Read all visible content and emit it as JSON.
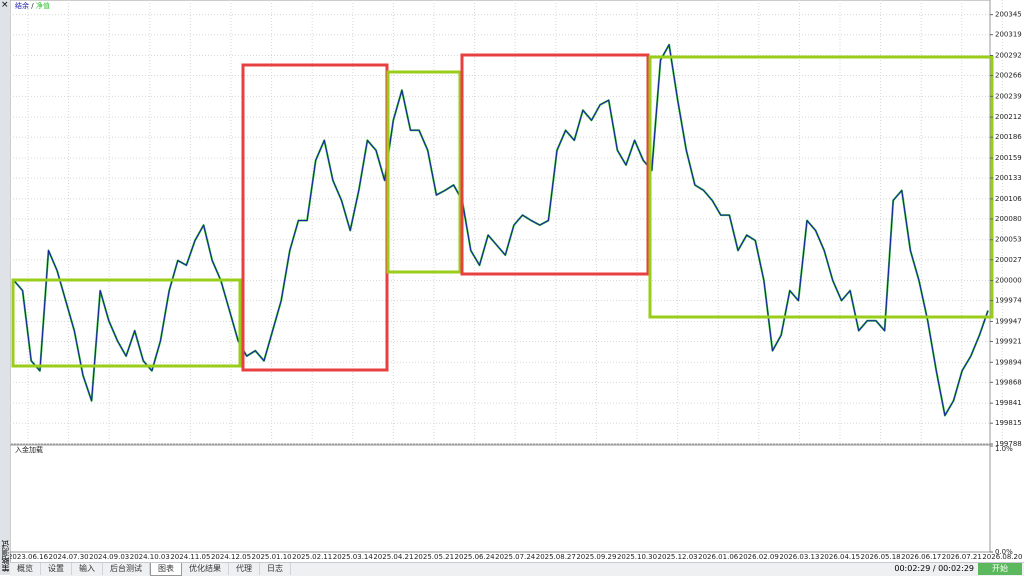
{
  "sidebar": {
    "title": "策略测试",
    "close": "×"
  },
  "chart_data": {
    "type": "line",
    "legend_separator": "/",
    "series": [
      {
        "name": "结余",
        "color": "#1c1ca8",
        "values": [
          200000,
          199987,
          199896,
          199883,
          200039,
          200013,
          199974,
          199935,
          199877,
          199844,
          199987,
          199948,
          199922,
          199902,
          199935,
          199896,
          199883,
          199922,
          199987,
          200026,
          200020,
          200052,
          200072,
          200026,
          200000,
          199961,
          199922,
          199902,
          199909,
          199896,
          199935,
          199974,
          200039,
          200078,
          200078,
          200156,
          200182,
          200130,
          200104,
          200065,
          200117,
          200182,
          200169,
          200130,
          200208,
          200247,
          200195,
          200195,
          200169,
          200111,
          200117,
          200124,
          200104,
          200039,
          200020,
          200059,
          200046,
          200033,
          200072,
          200085,
          200078,
          200072,
          200078,
          200169,
          200195,
          200182,
          200221,
          200208,
          200228,
          200234,
          200169,
          200150,
          200182,
          200156,
          200143,
          200286,
          200306,
          200234,
          200169,
          200124,
          200117,
          200104,
          200085,
          200085,
          200039,
          200059,
          200052,
          200000,
          199909,
          199929,
          199987,
          199974,
          200078,
          200065,
          200039,
          200000,
          199974,
          199987,
          199935,
          199948,
          199948,
          199935,
          200104,
          200117,
          200039,
          200000,
          199948,
          199883,
          199825,
          199844,
          199883,
          199902,
          199929,
          199961
        ]
      },
      {
        "name": "净值",
        "color": "#2fbf2f",
        "values": [
          200000,
          199987,
          199896,
          199883,
          200039,
          200013,
          199974,
          199935,
          199877,
          199844,
          199987,
          199948,
          199922,
          199902,
          199935,
          199896,
          199883,
          199922,
          199987,
          200026,
          200020,
          200052,
          200072,
          200026,
          200000,
          199961,
          199922,
          199902,
          199909,
          199896,
          199935,
          199974,
          200039,
          200078,
          200078,
          200156,
          200182,
          200130,
          200104,
          200065,
          200117,
          200182,
          200169,
          200130,
          200208,
          200247,
          200195,
          200195,
          200169,
          200111,
          200117,
          200124,
          200104,
          200039,
          200020,
          200059,
          200046,
          200033,
          200072,
          200085,
          200078,
          200072,
          200078,
          200169,
          200195,
          200182,
          200221,
          200208,
          200228,
          200234,
          200169,
          200150,
          200182,
          200156,
          200143,
          200286,
          200306,
          200234,
          200169,
          200124,
          200117,
          200104,
          200085,
          200085,
          200039,
          200059,
          200052,
          200000,
          199909,
          199929,
          199987,
          199974,
          200078,
          200065,
          200039,
          200000,
          199974,
          199987,
          199935,
          199948,
          199948,
          199935,
          200104,
          200117,
          200039,
          200000,
          199948,
          199883,
          199825,
          199844,
          199883,
          199902,
          199929,
          199961
        ]
      }
    ],
    "ylim": [
      199788,
      200364
    ],
    "yticks": [
      200345,
      200319,
      200292,
      200266,
      200239,
      200212,
      200186,
      200159,
      200133,
      200106,
      200080,
      200053,
      200027,
      200000,
      199974,
      199947,
      199921,
      199894,
      199868,
      199841,
      199815,
      199788
    ],
    "date_labels": [
      "2023.06.16",
      "2024.07.30",
      "2024.09.03",
      "2024.10.03",
      "2024.11.05",
      "2024.12.05",
      "2025.01.10",
      "2025.02.11",
      "2025.03.14",
      "2025.04.21",
      "2025.05.21",
      "2025.06.24",
      "2025.07.24",
      "2025.08.27",
      "2025.09.29",
      "2025.10.30",
      "2025.12.03",
      "2026.01.06",
      "2026.02.09",
      "2026.03.13",
      "2026.04.15",
      "2026.05.18",
      "2026.06.17",
      "2026.07.21",
      "2026.08.20"
    ],
    "grid": true
  },
  "deposit_panel": {
    "title": "入金加载",
    "ylim": [
      0,
      1
    ],
    "ticks": [
      {
        "value": 1,
        "label": "1.0%"
      },
      {
        "value": 0,
        "label": "0.0%"
      }
    ]
  },
  "tabs": [
    "概览",
    "设置",
    "输入",
    "后台测试",
    "图表",
    "优化结果",
    "代理",
    "日志"
  ],
  "active_tab": 4,
  "status": {
    "time": "00:02:29 / 00:02:29",
    "start_button": "开始"
  }
}
